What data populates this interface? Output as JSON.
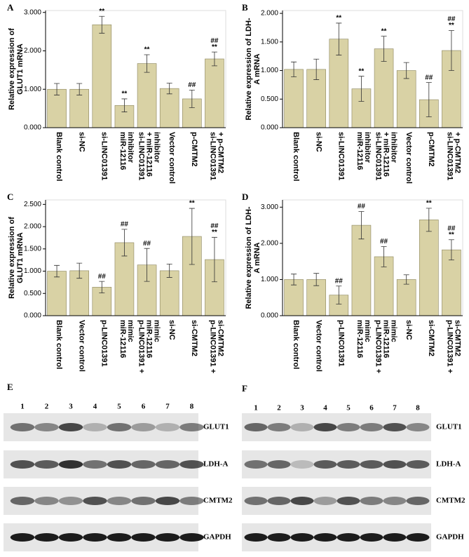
{
  "chart_data": [
    {
      "type": "bar",
      "panel": "A",
      "ylabel": [
        "Relative expression of",
        "GLUT1 mRNA"
      ],
      "categories": [
        [
          "Blank control"
        ],
        [
          "si-NC"
        ],
        [
          "si-LINC01391"
        ],
        [
          "miR-12116",
          "inhibitor"
        ],
        [
          "si-LINC01391",
          "+ miR-12116",
          "inhibitor"
        ],
        [
          "Vector control"
        ],
        [
          "p-CMTM2"
        ],
        [
          "si-LINC01391",
          "+ p-CMTM2"
        ]
      ],
      "values": [
        1.0,
        1.0,
        2.68,
        0.58,
        1.67,
        1.02,
        0.75,
        1.79
      ],
      "errors": [
        0.15,
        0.15,
        0.22,
        0.17,
        0.23,
        0.14,
        0.23,
        0.18
      ],
      "annotations": [
        null,
        null,
        [
          "**"
        ],
        [
          "**"
        ],
        [
          "**"
        ],
        null,
        [
          "##"
        ],
        [
          "##",
          "**"
        ]
      ],
      "color": "#d9d2a5",
      "ylim": [
        0,
        3.05
      ],
      "yticks": [
        {
          "value": 0,
          "label": "0.000"
        },
        {
          "value": 1,
          "label": "1.000"
        },
        {
          "value": 2,
          "label": "2.000"
        },
        {
          "value": 3,
          "label": "3.000"
        }
      ]
    },
    {
      "type": "bar",
      "panel": "B",
      "ylabel": [
        "Relative expression of LDH-",
        "A mRNA"
      ],
      "categories": [
        [
          "Blank control"
        ],
        [
          "si-NC"
        ],
        [
          "si-LINC01391"
        ],
        [
          "miR-12116",
          "inhibitor"
        ],
        [
          "si-LINC01391",
          "+ miR-12116",
          "inhibitor"
        ],
        [
          "Vector control"
        ],
        [
          "p-CMTM2"
        ],
        [
          "si-LINC01391",
          "+ p-CMTM2"
        ]
      ],
      "values": [
        1.02,
        1.02,
        1.55,
        0.68,
        1.38,
        1.0,
        0.49,
        1.35
      ],
      "errors": [
        0.13,
        0.18,
        0.28,
        0.22,
        0.22,
        0.14,
        0.3,
        0.35
      ],
      "annotations": [
        null,
        null,
        [
          "**"
        ],
        [
          "**"
        ],
        [
          "**"
        ],
        null,
        [
          "##"
        ],
        [
          "##",
          "**"
        ]
      ],
      "color": "#d9d2a5",
      "ylim": [
        0,
        2.05
      ],
      "yticks": [
        {
          "value": 0,
          "label": "0.000"
        },
        {
          "value": 0.5,
          "label": "0.500"
        },
        {
          "value": 1,
          "label": "1.000"
        },
        {
          "value": 1.5,
          "label": "1.500"
        },
        {
          "value": 2,
          "label": "2.000"
        }
      ]
    },
    {
      "type": "bar",
      "panel": "C",
      "ylabel": [
        "Relative expression of",
        "GLUT1 mRNA"
      ],
      "categories": [
        [
          "Blank control"
        ],
        [
          "Vector control"
        ],
        [
          "p-LINC01391"
        ],
        [
          "miR-12116",
          "mimic"
        ],
        [
          "p-LINC01391 +",
          "miR-12116",
          "mimic"
        ],
        [
          "si-NC"
        ],
        [
          "si-CMTM2"
        ],
        [
          "p-LINC01391 +",
          "si-CMTM2"
        ]
      ],
      "values": [
        1.0,
        1.01,
        0.64,
        1.64,
        1.14,
        1.01,
        1.78,
        1.26
      ],
      "errors": [
        0.13,
        0.17,
        0.13,
        0.3,
        0.37,
        0.15,
        0.63,
        0.5
      ],
      "annotations": [
        null,
        null,
        [
          "##"
        ],
        [
          "##"
        ],
        [
          "##"
        ],
        null,
        [
          "**"
        ],
        [
          "##",
          "**"
        ]
      ],
      "color": "#d9d2a5",
      "ylim": [
        0,
        2.6
      ],
      "yticks": [
        {
          "value": 0,
          "label": "0.000"
        },
        {
          "value": 0.5,
          "label": "0.500"
        },
        {
          "value": 1,
          "label": "1.000"
        },
        {
          "value": 1.5,
          "label": "1.500"
        },
        {
          "value": 2,
          "label": "2.000"
        },
        {
          "value": 2.5,
          "label": "2.500"
        }
      ]
    },
    {
      "type": "bar",
      "panel": "D",
      "ylabel": [
        "Relative expression of LDH-",
        "A mRNA"
      ],
      "categories": [
        [
          "Blank control"
        ],
        [
          "Vector control"
        ],
        [
          "p-LINC01391"
        ],
        [
          "miR-12116",
          "mimic"
        ],
        [
          "p-LINC01391 +",
          "miR-12116",
          "mimic"
        ],
        [
          "si-NC"
        ],
        [
          "si-CMTM2"
        ],
        [
          "p-LINC01391 +",
          "si-CMTM2"
        ]
      ],
      "values": [
        1.0,
        1.0,
        0.57,
        2.5,
        1.63,
        1.0,
        2.65,
        1.82
      ],
      "errors": [
        0.15,
        0.17,
        0.25,
        0.38,
        0.28,
        0.13,
        0.32,
        0.28
      ],
      "annotations": [
        null,
        null,
        [
          "##"
        ],
        [
          "##"
        ],
        [
          "##"
        ],
        null,
        [
          "**"
        ],
        [
          "##",
          "**"
        ]
      ],
      "color": "#d9d2a5",
      "ylim": [
        0,
        3.2
      ],
      "yticks": [
        {
          "value": 0,
          "label": "0.000"
        },
        {
          "value": 1,
          "label": "1.000"
        },
        {
          "value": 2,
          "label": "2.000"
        },
        {
          "value": 3,
          "label": "3.000"
        }
      ]
    }
  ],
  "blots": [
    {
      "panel": "E",
      "lanes": [
        "1",
        "2",
        "3",
        "4",
        "5",
        "6",
        "7",
        "8"
      ],
      "rows": [
        "GLUT1",
        "LDH-A",
        "CMTM2",
        "GAPDH"
      ]
    },
    {
      "panel": "F",
      "lanes": [
        "1",
        "2",
        "3",
        "4",
        "5",
        "6",
        "7",
        "8"
      ],
      "rows": [
        "GLUT1",
        "LDH-A",
        "CMTM2",
        "GAPDH"
      ]
    }
  ]
}
